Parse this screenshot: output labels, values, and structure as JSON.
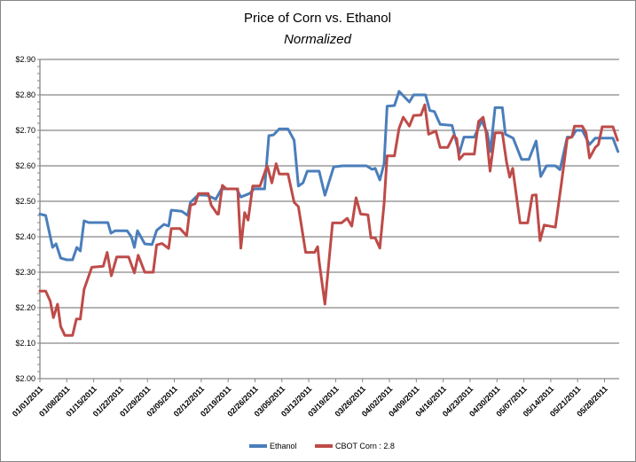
{
  "chart_data": {
    "type": "line",
    "title": "Price of Corn vs. Ethanol",
    "subtitle": "Normalized",
    "xlabel": "",
    "ylabel": "",
    "x_unit": "days since 01/01/2011",
    "xlim": [
      0,
      151
    ],
    "ylim": [
      2.0,
      2.9
    ],
    "y_ticks": [
      2.0,
      2.1,
      2.2,
      2.3,
      2.4,
      2.5,
      2.6,
      2.7,
      2.8,
      2.9
    ],
    "y_tick_labels": [
      "$2.00",
      "$2.10",
      "$2.20",
      "$2.30",
      "$2.40",
      "$2.50",
      "$2.60",
      "$2.70",
      "$2.80",
      "$2.90"
    ],
    "x_tick_days": [
      0,
      7,
      14,
      21,
      28,
      35,
      42,
      49,
      56,
      63,
      70,
      77,
      84,
      91,
      98,
      105,
      112,
      119,
      126,
      133,
      140,
      147
    ],
    "x_tick_labels": [
      "01/01/2011",
      "01/08/2011",
      "01/15/2011",
      "01/22/2011",
      "01/29/2011",
      "02/05/2011",
      "02/12/2011",
      "02/19/2011",
      "02/26/2011",
      "03/05/2011",
      "03/12/2011",
      "03/19/2011",
      "03/26/2011",
      "04/02/2011",
      "04/09/2011",
      "04/16/2011",
      "04/23/2011",
      "04/30/2011",
      "05/07/2011",
      "05/14/2011",
      "05/21/2011",
      "05/28/2011"
    ],
    "grid": true,
    "legend": "bottom",
    "series": [
      {
        "name": "Ethanol",
        "color": "#4a7ebb",
        "points": [
          [
            0,
            2.464
          ],
          [
            1.5,
            2.46
          ],
          [
            3.3,
            2.37
          ],
          [
            4.2,
            2.38
          ],
          [
            5.4,
            2.34
          ],
          [
            7,
            2.335
          ],
          [
            8.5,
            2.335
          ],
          [
            9.6,
            2.37
          ],
          [
            10.5,
            2.36
          ],
          [
            11.5,
            2.445
          ],
          [
            12.7,
            2.44
          ],
          [
            17.7,
            2.44
          ],
          [
            18.5,
            2.41
          ],
          [
            19.6,
            2.417
          ],
          [
            22.7,
            2.417
          ],
          [
            23.8,
            2.4
          ],
          [
            24.6,
            2.37
          ],
          [
            25.4,
            2.417
          ],
          [
            27.3,
            2.38
          ],
          [
            29.2,
            2.378
          ],
          [
            30.4,
            2.418
          ],
          [
            32.3,
            2.435
          ],
          [
            33.5,
            2.43
          ],
          [
            34.2,
            2.475
          ],
          [
            36.9,
            2.472
          ],
          [
            38.5,
            2.46
          ],
          [
            39.2,
            2.497
          ],
          [
            41.2,
            2.518
          ],
          [
            43.5,
            2.517
          ],
          [
            45.8,
            2.506
          ],
          [
            47.3,
            2.535
          ],
          [
            51.2,
            2.535
          ],
          [
            52.3,
            2.512
          ],
          [
            54.6,
            2.522
          ],
          [
            55.8,
            2.535
          ],
          [
            58.5,
            2.535
          ],
          [
            59.6,
            2.685
          ],
          [
            60.8,
            2.687
          ],
          [
            62.3,
            2.704
          ],
          [
            64.6,
            2.704
          ],
          [
            66.2,
            2.672
          ],
          [
            67.3,
            2.543
          ],
          [
            68.5,
            2.552
          ],
          [
            69.6,
            2.585
          ],
          [
            72.7,
            2.585
          ],
          [
            74.2,
            2.517
          ],
          [
            76.5,
            2.597
          ],
          [
            78.8,
            2.6
          ],
          [
            85,
            2.6
          ],
          [
            86.5,
            2.59
          ],
          [
            87.3,
            2.593
          ],
          [
            88.5,
            2.56
          ],
          [
            89.6,
            2.606
          ],
          [
            90.4,
            2.768
          ],
          [
            92.3,
            2.77
          ],
          [
            93.5,
            2.81
          ],
          [
            96.2,
            2.78
          ],
          [
            97.3,
            2.8
          ],
          [
            100.4,
            2.8
          ],
          [
            101.5,
            2.756
          ],
          [
            102.7,
            2.753
          ],
          [
            104.2,
            2.717
          ],
          [
            107.3,
            2.714
          ],
          [
            109.2,
            2.635
          ],
          [
            110.4,
            2.681
          ],
          [
            113.1,
            2.681
          ],
          [
            115,
            2.727
          ],
          [
            116.5,
            2.693
          ],
          [
            117.3,
            2.64
          ],
          [
            118.5,
            2.764
          ],
          [
            120.4,
            2.764
          ],
          [
            121.2,
            2.689
          ],
          [
            123.2,
            2.678
          ],
          [
            125.4,
            2.618
          ],
          [
            127.3,
            2.618
          ],
          [
            129.2,
            2.67
          ],
          [
            130.4,
            2.57
          ],
          [
            131.9,
            2.6
          ],
          [
            134.2,
            2.6
          ],
          [
            135.4,
            2.589
          ],
          [
            137.3,
            2.681
          ],
          [
            138.5,
            2.681
          ],
          [
            139.6,
            2.7
          ],
          [
            141.2,
            2.7
          ],
          [
            143.1,
            2.66
          ],
          [
            144.6,
            2.678
          ],
          [
            149.2,
            2.678
          ],
          [
            150.5,
            2.64
          ]
        ]
      },
      {
        "name": "CBOT Corn : 2.8",
        "color": "#be4b48",
        "points": [
          [
            0,
            2.247
          ],
          [
            1.5,
            2.247
          ],
          [
            2.7,
            2.218
          ],
          [
            3.5,
            2.172
          ],
          [
            4.6,
            2.21
          ],
          [
            5.4,
            2.147
          ],
          [
            6.5,
            2.122
          ],
          [
            8.5,
            2.122
          ],
          [
            9.5,
            2.168
          ],
          [
            10.5,
            2.168
          ],
          [
            11.5,
            2.252
          ],
          [
            13.5,
            2.314
          ],
          [
            16.5,
            2.317
          ],
          [
            17.5,
            2.356
          ],
          [
            18.6,
            2.29
          ],
          [
            20,
            2.343
          ],
          [
            23.1,
            2.343
          ],
          [
            24.6,
            2.298
          ],
          [
            25.6,
            2.348
          ],
          [
            27.3,
            2.3
          ],
          [
            29.5,
            2.3
          ],
          [
            30.4,
            2.377
          ],
          [
            31.8,
            2.381
          ],
          [
            33.5,
            2.367
          ],
          [
            34.2,
            2.423
          ],
          [
            36.5,
            2.423
          ],
          [
            38.2,
            2.403
          ],
          [
            39.2,
            2.489
          ],
          [
            40.4,
            2.493
          ],
          [
            41.3,
            2.522
          ],
          [
            43.8,
            2.522
          ],
          [
            44.6,
            2.489
          ],
          [
            46.2,
            2.464
          ],
          [
            46.5,
            2.464
          ],
          [
            47.5,
            2.545
          ],
          [
            48.5,
            2.535
          ],
          [
            51.5,
            2.535
          ],
          [
            52.3,
            2.368
          ],
          [
            53.3,
            2.468
          ],
          [
            54.2,
            2.447
          ],
          [
            55.4,
            2.543
          ],
          [
            57.3,
            2.543
          ],
          [
            58.8,
            2.589
          ],
          [
            59.2,
            2.6
          ],
          [
            60.4,
            2.552
          ],
          [
            61.5,
            2.606
          ],
          [
            62.3,
            2.577
          ],
          [
            64.6,
            2.577
          ],
          [
            66.2,
            2.497
          ],
          [
            67.3,
            2.485
          ],
          [
            69.2,
            2.356
          ],
          [
            71.5,
            2.356
          ],
          [
            72.3,
            2.372
          ],
          [
            72.7,
            2.33
          ],
          [
            74.2,
            2.21
          ],
          [
            76.2,
            2.439
          ],
          [
            78.5,
            2.439
          ],
          [
            80,
            2.452
          ],
          [
            81.2,
            2.43
          ],
          [
            82.3,
            2.51
          ],
          [
            83.5,
            2.464
          ],
          [
            85.4,
            2.462
          ],
          [
            86.2,
            2.397
          ],
          [
            87.3,
            2.397
          ],
          [
            88.5,
            2.368
          ],
          [
            89.6,
            2.493
          ],
          [
            90.4,
            2.628
          ],
          [
            92.3,
            2.628
          ],
          [
            93.5,
            2.706
          ],
          [
            94.6,
            2.737
          ],
          [
            96.2,
            2.712
          ],
          [
            97.3,
            2.742
          ],
          [
            99.2,
            2.743
          ],
          [
            100.2,
            2.772
          ],
          [
            101.2,
            2.689
          ],
          [
            103.1,
            2.698
          ],
          [
            104.2,
            2.652
          ],
          [
            106.2,
            2.652
          ],
          [
            107.7,
            2.685
          ],
          [
            108.5,
            2.677
          ],
          [
            109.2,
            2.618
          ],
          [
            110.4,
            2.633
          ],
          [
            113.1,
            2.633
          ],
          [
            114.2,
            2.725
          ],
          [
            115.4,
            2.737
          ],
          [
            116.2,
            2.693
          ],
          [
            117.2,
            2.585
          ],
          [
            118.5,
            2.693
          ],
          [
            120.4,
            2.693
          ],
          [
            121.5,
            2.61
          ],
          [
            122.3,
            2.568
          ],
          [
            123.1,
            2.593
          ],
          [
            125,
            2.439
          ],
          [
            127,
            2.439
          ],
          [
            128.2,
            2.517
          ],
          [
            129.2,
            2.518
          ],
          [
            130.2,
            2.389
          ],
          [
            131.3,
            2.433
          ],
          [
            134.2,
            2.427
          ],
          [
            135.8,
            2.552
          ],
          [
            137.3,
            2.677
          ],
          [
            138.5,
            2.681
          ],
          [
            139.2,
            2.712
          ],
          [
            141.2,
            2.712
          ],
          [
            142.2,
            2.693
          ],
          [
            143.1,
            2.622
          ],
          [
            144.6,
            2.652
          ],
          [
            145.4,
            2.66
          ],
          [
            146.4,
            2.71
          ],
          [
            149.2,
            2.71
          ],
          [
            150.4,
            2.672
          ]
        ]
      }
    ]
  }
}
